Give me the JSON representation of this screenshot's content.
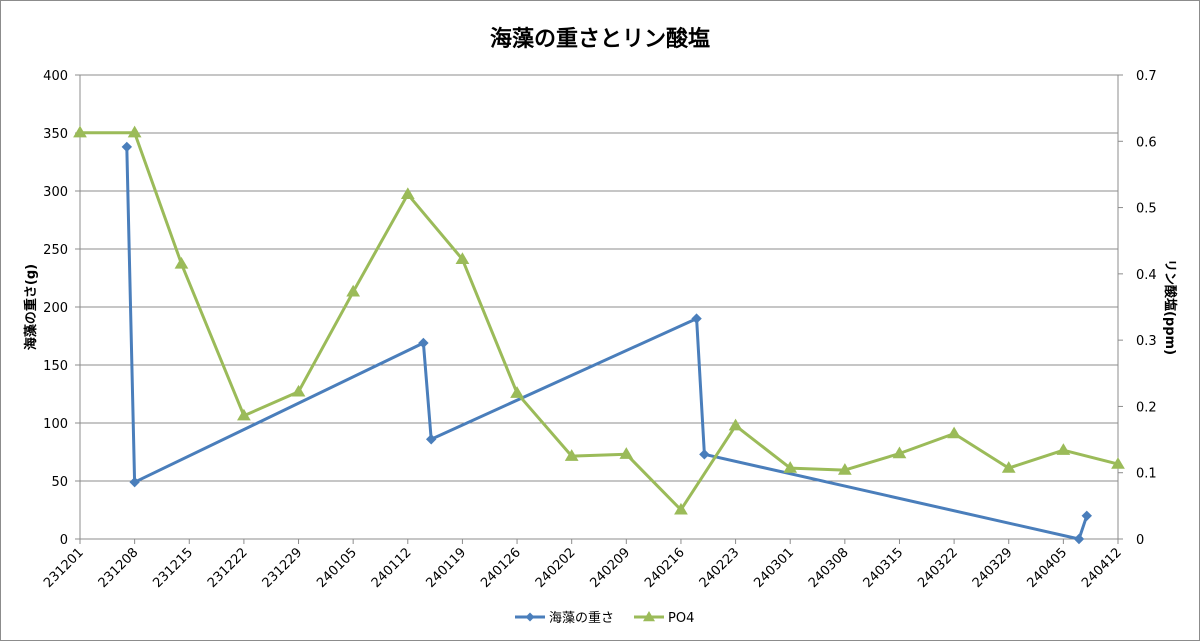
{
  "chart_data": {
    "type": "line",
    "title": "海藻の重さとリン酸塩",
    "ylabel": "海藻の重さ(g)",
    "y2label": "リン酸塩(ppm)",
    "ylim": [
      0,
      400
    ],
    "y_ticks": [
      0,
      50,
      100,
      150,
      200,
      250,
      300,
      350,
      400
    ],
    "y2lim": [
      0,
      0.7
    ],
    "y2_ticks": [
      "0",
      "0.1",
      "0.2",
      "0.3",
      "0.4",
      "0.5",
      "0.6",
      "0.7"
    ],
    "x_ticks": [
      "231201",
      "231208",
      "231215",
      "231222",
      "231229",
      "240105",
      "240112",
      "240119",
      "240126",
      "240202",
      "240209",
      "240216",
      "240223",
      "240301",
      "240308",
      "240315",
      "240322",
      "240329",
      "240405",
      "240412"
    ],
    "grid": "horizontal",
    "legend_position": "bottom",
    "series": [
      {
        "name": "海藻の重さ",
        "axis": "left",
        "color": "#4a7ebb",
        "marker": "diamond",
        "points": [
          {
            "x": "231207",
            "y": 338
          },
          {
            "x": "231208",
            "y": 49
          },
          {
            "x": "240114",
            "y": 169
          },
          {
            "x": "240115",
            "y": 86
          },
          {
            "x": "240218",
            "y": 190
          },
          {
            "x": "240219",
            "y": 73
          },
          {
            "x": "240407",
            "y": 0
          },
          {
            "x": "240408",
            "y": 20
          }
        ]
      },
      {
        "name": "PO4",
        "axis": "right",
        "color": "#9bbb59",
        "marker": "triangle",
        "points": [
          {
            "x": "231201",
            "y": 0.613
          },
          {
            "x": "231208",
            "y": 0.613
          },
          {
            "x": "231214",
            "y": 0.415
          },
          {
            "x": "231222",
            "y": 0.186
          },
          {
            "x": "231229",
            "y": 0.222
          },
          {
            "x": "240105",
            "y": 0.373
          },
          {
            "x": "240112",
            "y": 0.52
          },
          {
            "x": "240119",
            "y": 0.422
          },
          {
            "x": "240126",
            "y": 0.22
          },
          {
            "x": "240202",
            "y": 0.125
          },
          {
            "x": "240209",
            "y": 0.128
          },
          {
            "x": "240216",
            "y": 0.044
          },
          {
            "x": "240223",
            "y": 0.171
          },
          {
            "x": "240301",
            "y": 0.107
          },
          {
            "x": "240308",
            "y": 0.104
          },
          {
            "x": "240315",
            "y": 0.129
          },
          {
            "x": "240322",
            "y": 0.159
          },
          {
            "x": "240329",
            "y": 0.107
          },
          {
            "x": "240405",
            "y": 0.134
          },
          {
            "x": "240412",
            "y": 0.113
          }
        ]
      }
    ]
  }
}
